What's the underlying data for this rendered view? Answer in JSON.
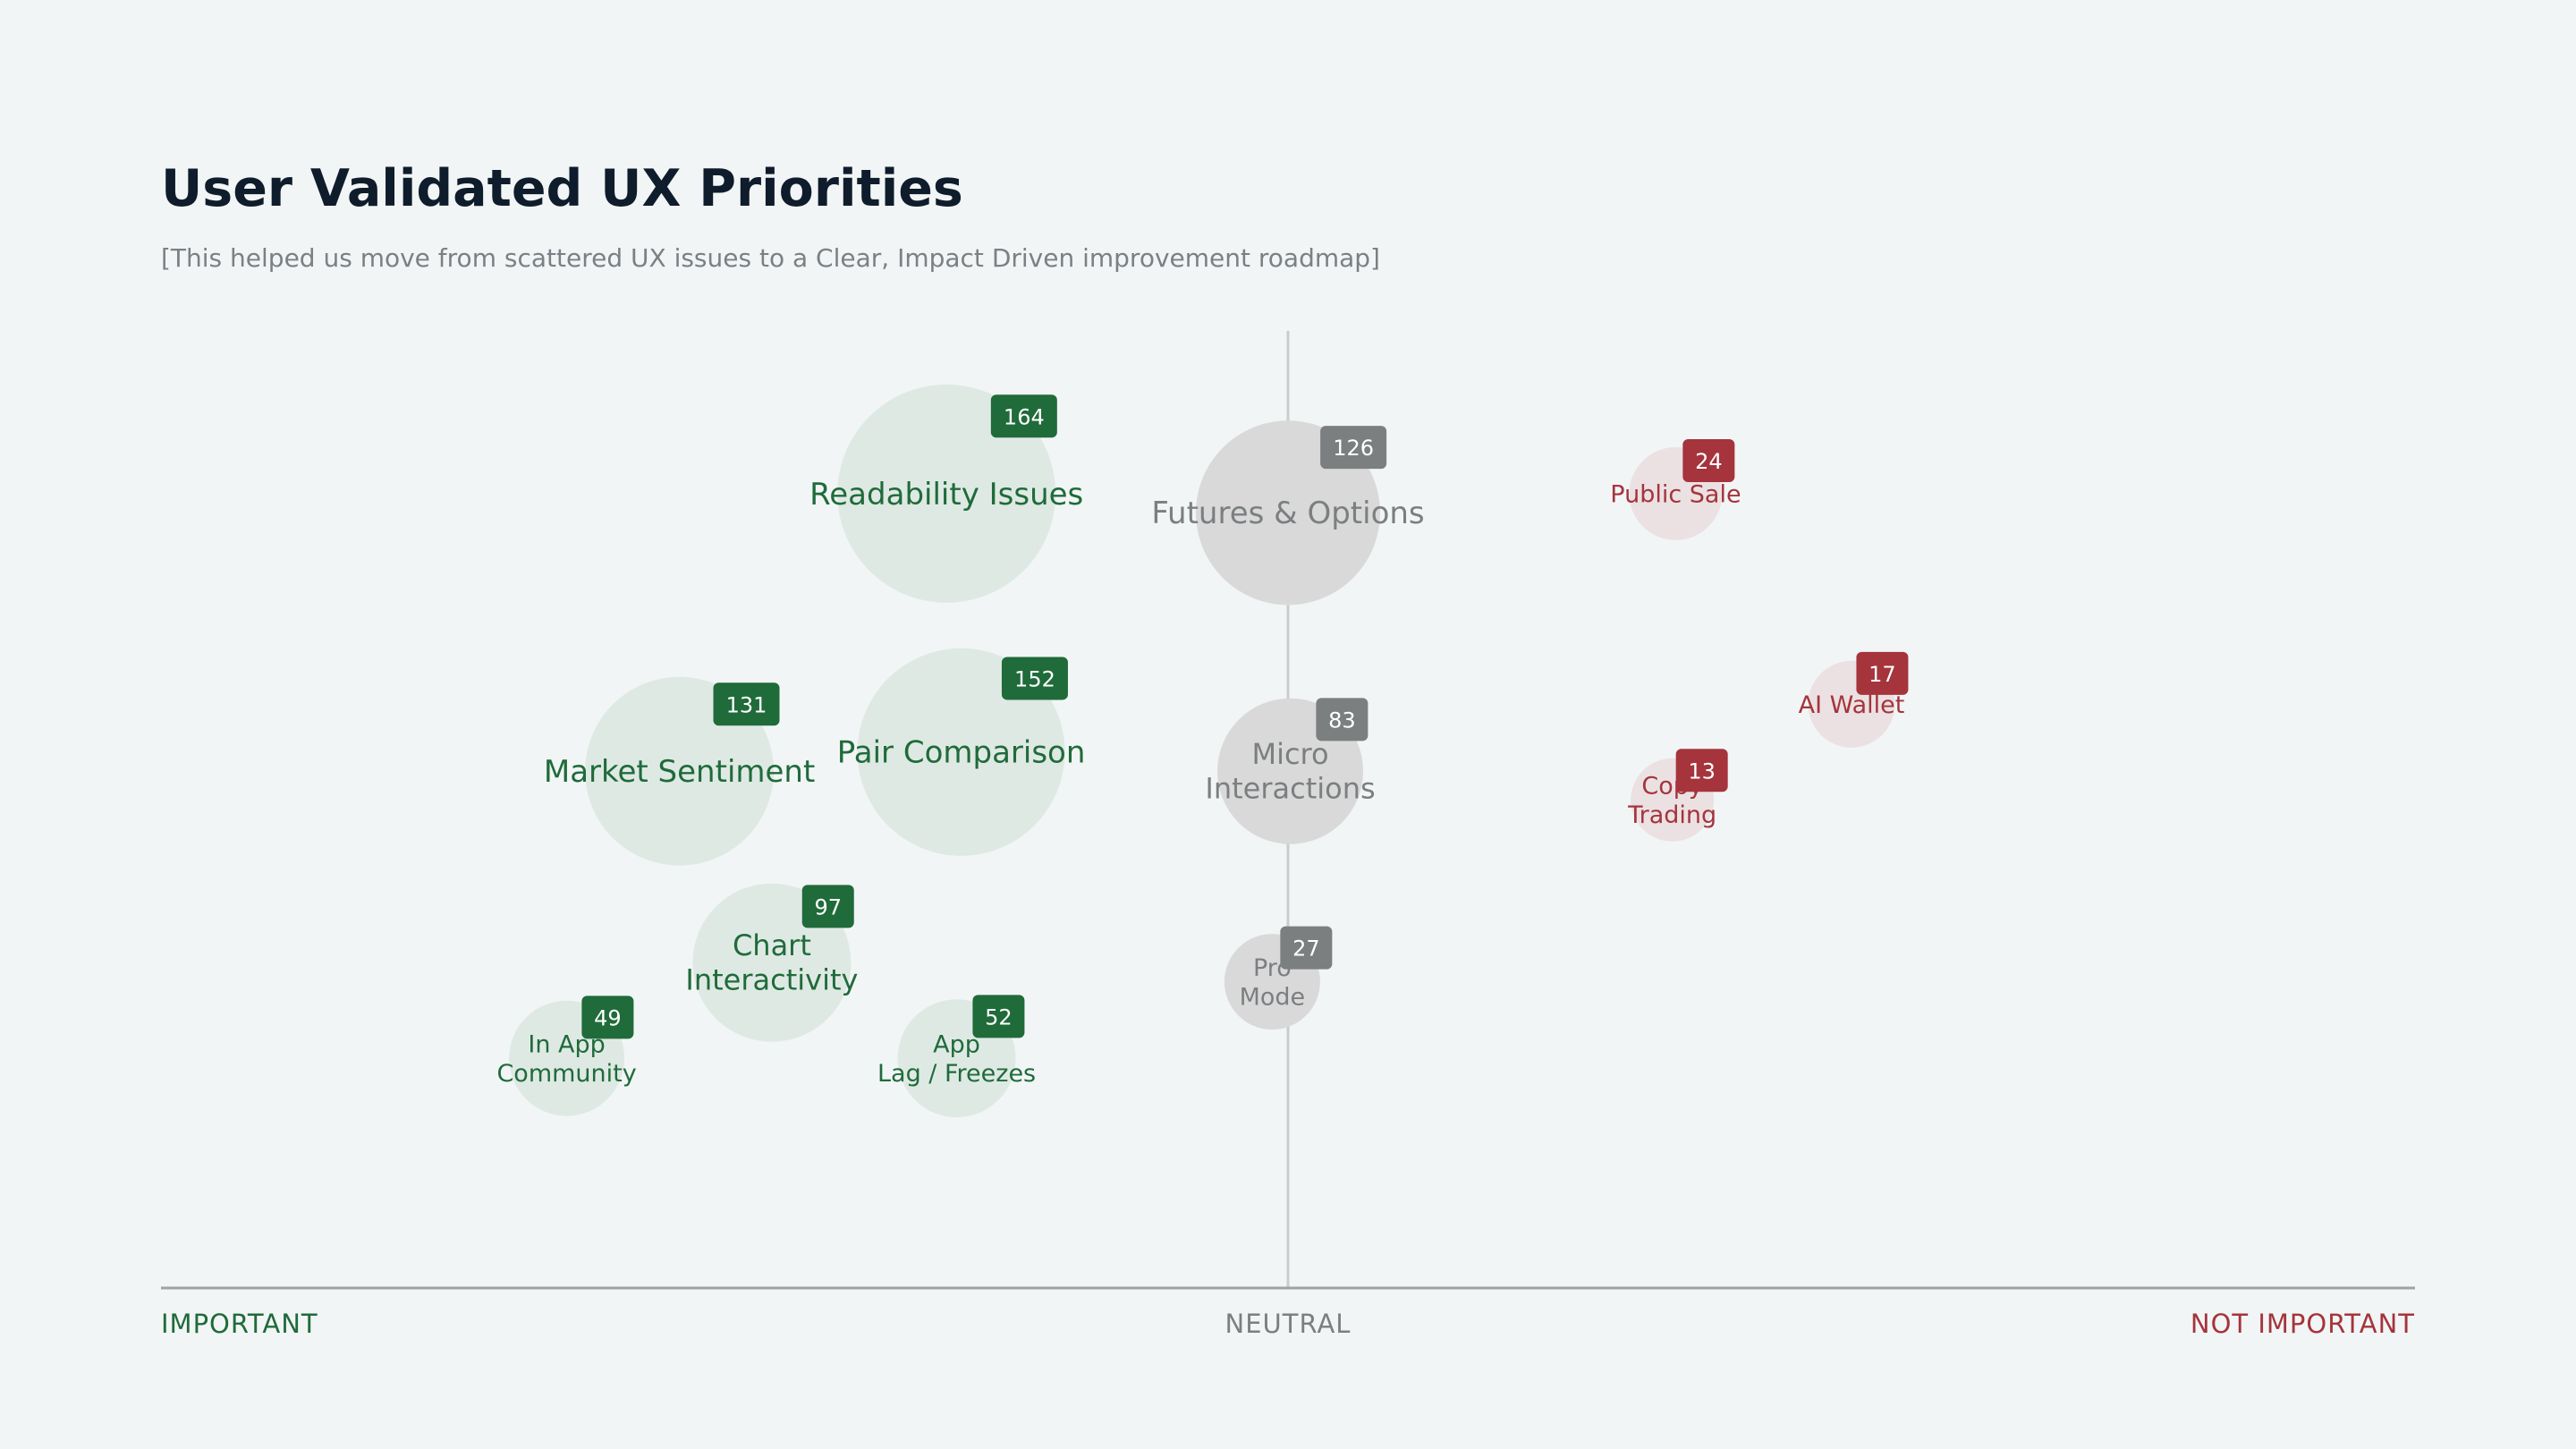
{
  "header": {
    "title": "User Validated UX Priorities",
    "subtitle": "[This helped us move from scattered UX issues to a Clear, Impact Driven improvement roadmap]"
  },
  "colors": {
    "important": "#1f6b3a",
    "neutral": "#7b7f80",
    "not_important": "#a5343c",
    "important_fill": "#dfe9e4",
    "neutral_fill": "#d9d9da",
    "not_important_fill": "#ebe1e2",
    "axis": "#9ea3a6",
    "background": "#f2f5f5"
  },
  "chart_data": {
    "type": "bubble",
    "title": "User Validated UX Priorities",
    "x_axis": {
      "labels": [
        "IMPORTANT",
        "NEUTRAL",
        "NOT IMPORTANT"
      ],
      "range": [
        -1,
        1
      ]
    },
    "points": [
      {
        "label": [
          "Readability Issues"
        ],
        "value": 164,
        "category": "important",
        "x": -0.303,
        "y": 0.83
      },
      {
        "label": [
          "Pair Comparison"
        ],
        "value": 152,
        "category": "important",
        "x": -0.29,
        "y": 0.56
      },
      {
        "label": [
          "Market Sentiment"
        ],
        "value": 131,
        "category": "important",
        "x": -0.54,
        "y": 0.54
      },
      {
        "label": [
          "Chart",
          "Interactivity"
        ],
        "value": 97,
        "category": "important",
        "x": -0.458,
        "y": 0.34
      },
      {
        "label": [
          "In App",
          "Community"
        ],
        "value": 49,
        "category": "important",
        "x": -0.64,
        "y": 0.24
      },
      {
        "label": [
          "App",
          "Lag / Freezes"
        ],
        "value": 52,
        "category": "important",
        "x": -0.294,
        "y": 0.24
      },
      {
        "label": [
          "Futures & Options"
        ],
        "value": 126,
        "category": "neutral",
        "x": 0.0,
        "y": 0.81
      },
      {
        "label": [
          "Micro",
          "Interactions"
        ],
        "value": 83,
        "category": "neutral",
        "x": 0.002,
        "y": 0.54
      },
      {
        "label": [
          "Pro",
          "Mode"
        ],
        "value": 27,
        "category": "neutral",
        "x": -0.014,
        "y": 0.32
      },
      {
        "label": [
          "Public Sale"
        ],
        "value": 24,
        "category": "not_important",
        "x": 0.344,
        "y": 0.83
      },
      {
        "label": [
          "AI Wallet"
        ],
        "value": 17,
        "category": "not_important",
        "x": 0.5,
        "y": 0.61
      },
      {
        "label": [
          "Copy",
          "Trading"
        ],
        "value": 13,
        "category": "not_important",
        "x": 0.341,
        "y": 0.51
      }
    ]
  }
}
